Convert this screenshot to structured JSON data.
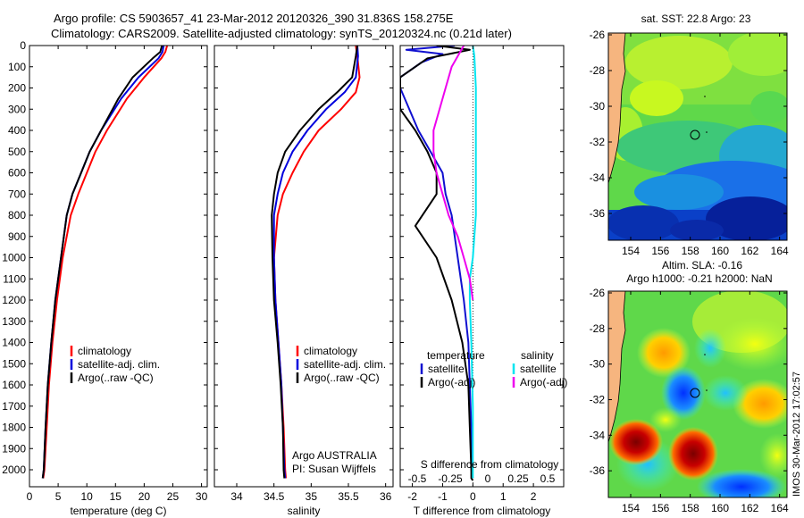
{
  "header": {
    "line1": "Argo profile: CS 5903657_41 23-Mar-2012 20120326_390 31.836S 158.275E",
    "line2": "Climatology: CARS2009. Satellite-adjusted climatology: synTS_20120324.nc (0.21d later)"
  },
  "colors": {
    "climatology": "#ff0000",
    "satellite": "#0000dd",
    "argo": "#000000",
    "sat_temp_diff": "#1010d0",
    "sat_sal_diff": "#00e5f0",
    "argo_sal_diff": "#ee00ee",
    "land": "#f6b57f"
  },
  "chart_data": [
    {
      "type": "line",
      "xlabel": "temperature (deg C)",
      "ylabel": "",
      "xlim": [
        0,
        31
      ],
      "ylim": [
        2080,
        0
      ],
      "xticks": [
        "0",
        "5",
        "10",
        "15",
        "20",
        "25",
        "30"
      ],
      "xtick_values": [
        0,
        5,
        10,
        15,
        20,
        25,
        30
      ],
      "yticks": [
        "0",
        "100",
        "200",
        "300",
        "400",
        "500",
        "600",
        "700",
        "800",
        "900",
        "1000",
        "1100",
        "1200",
        "1300",
        "1400",
        "1500",
        "1600",
        "1700",
        "1800",
        "1900",
        "2000"
      ],
      "ytick_values": [
        0,
        100,
        200,
        300,
        400,
        500,
        600,
        700,
        800,
        900,
        1000,
        1100,
        1200,
        1300,
        1400,
        1500,
        1600,
        1700,
        1800,
        1900,
        2000
      ],
      "legend": [
        "climatology",
        "satellite-adj. clim.",
        "Argo(..raw -QC)"
      ],
      "legend_position": "lower-right",
      "series": [
        {
          "name": "climatology",
          "color": "#ff0000",
          "x": [
            24,
            23.7,
            23,
            20,
            17,
            13.5,
            11.5,
            10,
            8.5,
            7.2,
            5.8,
            4.8,
            4,
            3.4,
            3,
            2.6,
            2.4
          ],
          "y": [
            0,
            30,
            60,
            150,
            250,
            400,
            500,
            600,
            700,
            800,
            1000,
            1200,
            1400,
            1600,
            1800,
            2000,
            2040
          ]
        },
        {
          "name": "satellite-adj. clim.",
          "color": "#0000dd",
          "x": [
            23.4,
            23.2,
            22.5,
            19,
            16,
            12.5,
            10.5,
            9,
            7.5,
            6.5,
            5.5,
            4.5,
            3.8,
            3.2,
            2.8,
            2.5,
            2.3
          ],
          "y": [
            0,
            30,
            60,
            150,
            250,
            400,
            500,
            600,
            700,
            800,
            1000,
            1200,
            1400,
            1600,
            1800,
            2000,
            2040
          ]
        },
        {
          "name": "Argo(..raw -QC)",
          "color": "#000000",
          "x": [
            23.1,
            22.8,
            21.5,
            18,
            15.5,
            12.5,
            10.5,
            9,
            7.5,
            6.5,
            5.5,
            4.5,
            3.8,
            3.2,
            2.8,
            2.5,
            2.3
          ],
          "y": [
            0,
            30,
            60,
            150,
            250,
            400,
            500,
            600,
            700,
            800,
            1000,
            1200,
            1400,
            1600,
            1800,
            2000,
            2040
          ]
        }
      ]
    },
    {
      "type": "line",
      "xlabel": "salinity",
      "xlim": [
        33.7,
        36.1
      ],
      "ylim": [
        2080,
        0
      ],
      "xticks": [
        "34",
        "34.5",
        "35",
        "35.5",
        "36"
      ],
      "xtick_values": [
        34,
        34.5,
        35,
        35.5,
        36
      ],
      "legend": [
        "climatology",
        "satellite-adj. clim.",
        "Argo(..raw -QC)"
      ],
      "legend_position": "lower-right",
      "annotations": [
        "Argo AUSTRALIA",
        "PI: Susan Wijffels"
      ],
      "series": [
        {
          "name": "climatology",
          "color": "#ff0000",
          "x": [
            35.6,
            35.62,
            35.65,
            35.6,
            35.4,
            35.1,
            34.9,
            34.75,
            34.62,
            34.55,
            34.5,
            34.52,
            34.56,
            34.6,
            34.63,
            34.65,
            34.66
          ],
          "y": [
            0,
            50,
            150,
            220,
            300,
            400,
            500,
            600,
            700,
            800,
            1000,
            1200,
            1400,
            1600,
            1800,
            2000,
            2040
          ]
        },
        {
          "name": "satellite-adj. clim.",
          "color": "#0000dd",
          "x": [
            35.62,
            35.63,
            35.6,
            35.45,
            35.2,
            34.95,
            34.75,
            34.62,
            34.55,
            34.5,
            34.5,
            34.52,
            34.56,
            34.6,
            34.62,
            34.64,
            34.65
          ],
          "y": [
            0,
            50,
            150,
            220,
            300,
            400,
            500,
            600,
            700,
            800,
            1000,
            1200,
            1400,
            1600,
            1800,
            2000,
            2040
          ]
        },
        {
          "name": "Argo(..raw -QC)",
          "color": "#000000",
          "x": [
            35.62,
            35.6,
            35.55,
            35.35,
            35.1,
            34.85,
            34.65,
            34.55,
            34.5,
            34.47,
            34.48,
            34.5,
            34.55,
            34.59,
            34.62,
            34.63,
            34.64
          ],
          "y": [
            0,
            50,
            150,
            220,
            300,
            400,
            500,
            600,
            700,
            800,
            1000,
            1200,
            1400,
            1600,
            1800,
            2000,
            2040
          ]
        }
      ]
    },
    {
      "type": "line",
      "xlabel": "T difference from climatology",
      "xlabel2": "S difference from climatology",
      "xlim": [
        -2.4,
        3
      ],
      "ylim": [
        2080,
        0
      ],
      "xticks": [
        "-2",
        "-1",
        "0",
        "1",
        "2"
      ],
      "xtick_values": [
        -2,
        -1,
        0,
        1,
        2
      ],
      "xticks2": [
        "-0.5",
        "-0.25",
        "0",
        "0.25",
        "0.5"
      ],
      "xtick2_positions": [
        -2,
        -1,
        0,
        1,
        2
      ],
      "zero_line": "dotted",
      "legend": {
        "temperature_title": "temperature",
        "salinity_title": "salinity",
        "temperature_entries": [
          "satellite",
          "Argo(-adj)"
        ],
        "salinity_entries": [
          "satellite",
          "Argo(-adj)"
        ]
      },
      "legend_position": "lower-right",
      "series": [
        {
          "name": "temperature satellite",
          "color": "#1010d0",
          "x": [
            -0.6,
            -2.2,
            -1,
            -1.7,
            -2.4,
            -2.4,
            -1.8,
            -1.4,
            -1,
            -0.9,
            -0.7,
            -0.5,
            -0.3,
            -0.15,
            -0.1,
            -0.05,
            -0.05,
            0
          ],
          "y": [
            0,
            20,
            40,
            80,
            150,
            200,
            400,
            500,
            600,
            700,
            800,
            1000,
            1200,
            1400,
            1600,
            1800,
            2000,
            2040
          ]
        },
        {
          "name": "temperature Argo(-adj)",
          "color": "#000000",
          "x": [
            -1.2,
            -0.1,
            -1.5,
            -2.4,
            -2.4,
            -1.9,
            -1.5,
            -1.2,
            -1.2,
            -1.9,
            -1.2,
            -0.7,
            -0.35,
            -0.15,
            -0.1,
            -0.05,
            -0.05,
            0
          ],
          "y": [
            0,
            20,
            60,
            150,
            300,
            400,
            500,
            600,
            700,
            850,
            1000,
            1200,
            1400,
            1600,
            1800,
            2000,
            2040,
            2050
          ]
        },
        {
          "name": "salinity satellite",
          "color": "#00e5f0",
          "x": [
            0,
            0.05,
            0.1,
            0.1,
            0.1,
            0.1,
            0.1,
            0.05,
            0,
            -0.1,
            -0.1,
            -0.05,
            0,
            0
          ],
          "y": [
            0,
            50,
            200,
            400,
            600,
            700,
            800,
            900,
            1000,
            1100,
            1200,
            1400,
            1700,
            2040
          ]
        },
        {
          "name": "salinity Argo(-adj)",
          "color": "#ee00ee",
          "x": [
            -0.3,
            -0.5,
            -0.7,
            -0.9,
            -1.3,
            -1.3,
            -1.2,
            -1,
            -0.8,
            -0.5,
            -0.3,
            -0.1,
            0
          ],
          "y": [
            0,
            50,
            100,
            200,
            400,
            500,
            600,
            700,
            800,
            900,
            1000,
            1100,
            1200
          ]
        }
      ]
    },
    {
      "type": "heatmap",
      "title": "sat. SST: 22.8  Argo: 23",
      "xticks": [
        "154",
        "156",
        "158",
        "160",
        "162",
        "164"
      ],
      "xtick_values": [
        154,
        156,
        158,
        160,
        162,
        164
      ],
      "yticks": [
        "-26",
        "-28",
        "-30",
        "-32",
        "-34",
        "-36"
      ],
      "ytick_values": [
        -26,
        -28,
        -30,
        -32,
        -34,
        -36
      ],
      "xlim": [
        152.5,
        164.5
      ],
      "ylim": [
        -37.5,
        -25.9
      ],
      "argo_position": [
        158.275,
        -31.836
      ]
    },
    {
      "type": "heatmap",
      "title": "Altim. SLA: -0.16",
      "subtitle": "Argo h1000: -0.21  h2000: NaN",
      "xticks": [
        "154",
        "156",
        "158",
        "160",
        "162",
        "164"
      ],
      "xtick_values": [
        154,
        156,
        158,
        160,
        162,
        164
      ],
      "yticks": [
        "-26",
        "-28",
        "-30",
        "-32",
        "-34",
        "-36"
      ],
      "ytick_values": [
        -26,
        -28,
        -30,
        -32,
        -34,
        -36
      ],
      "xlim": [
        152.5,
        164.5
      ],
      "ylim": [
        -37.5,
        -25.9
      ],
      "argo_position": [
        158.275,
        -31.836
      ]
    }
  ],
  "signature": "IMOS 30-Mar-2012 17:02:57"
}
